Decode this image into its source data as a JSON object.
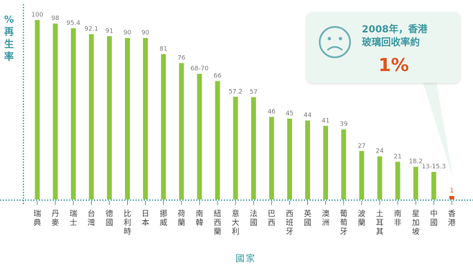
{
  "chart_data": {
    "type": "bar",
    "categories": [
      "瑞典",
      "丹麥",
      "瑞士",
      "台灣",
      "德國",
      "比利時",
      "日本",
      "挪威",
      "荷蘭",
      "南韓",
      "紐西蘭",
      "意大利",
      "法國",
      "巴西",
      "西班牙",
      "英國",
      "澳洲",
      "葡萄牙",
      "波蘭",
      "土耳其",
      "南非",
      "星加坡",
      "中國",
      "香港"
    ],
    "values": [
      100,
      98,
      95.4,
      92.1,
      91,
      90,
      90,
      81,
      76,
      70,
      66,
      57.2,
      57,
      46,
      45,
      44,
      41,
      39,
      27,
      24,
      21,
      18.2,
      15.3,
      1
    ],
    "value_labels": [
      "100",
      "98",
      "95.4",
      "92.1",
      "91",
      "90",
      "90",
      "81",
      "76",
      "68-70",
      "66",
      "57.2",
      "57",
      "46",
      "45",
      "44",
      "41",
      "39",
      "27",
      "24",
      "21",
      "18.2",
      "13-15.3",
      "1"
    ],
    "ylabel": "%再生率",
    "xlabel": "國家",
    "ylim": [
      0,
      100
    ],
    "highlight_index": 23,
    "colors": {
      "bar": "#8dc63f",
      "highlight": "#e0541e",
      "axis": "#3a98a0",
      "label": "#7a7a7a"
    }
  },
  "callout": {
    "line1": "2008年，香港",
    "line2": "玻璃回收率約",
    "value": "1%",
    "icon": "sad-face-icon"
  }
}
